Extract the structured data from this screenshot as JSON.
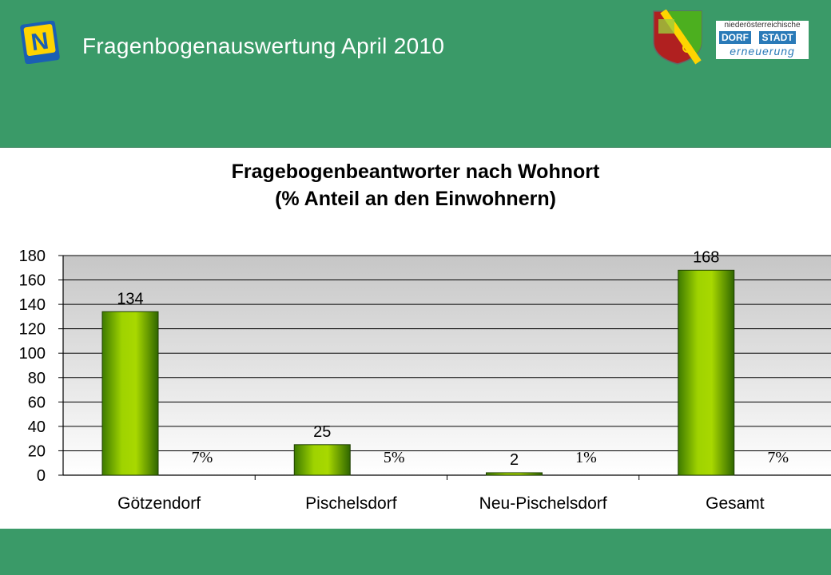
{
  "header": {
    "title": "Fragenbogenauswertung April 2010",
    "logo_n_letter": "N",
    "partner_logo": {
      "top": "niederösterreichische",
      "left": "DORF",
      "right": "STADT",
      "bottom": "erneuerung"
    }
  },
  "colors": {
    "background": "#3a9a68",
    "bar_light": "#a8d800",
    "bar_dark": "#3d7a00",
    "plot_bg_top": "#c8c8c8"
  },
  "chart_data": {
    "type": "bar",
    "title": "Fragebogenbeantworter nach Wohnort",
    "subtitle": "(% Anteil an den Einwohnern)",
    "categories": [
      "Götzendorf",
      "Pischelsdorf",
      "Neu-Pischelsdorf",
      "Gesamt"
    ],
    "values": [
      134,
      25,
      2,
      168
    ],
    "value_labels": [
      "134",
      "25",
      "2",
      "168"
    ],
    "percent_labels": [
      "7%",
      "5%",
      "1%",
      "7%"
    ],
    "ylim": [
      0,
      180
    ],
    "yticks": [
      "0",
      "20",
      "40",
      "60",
      "80",
      "100",
      "120",
      "140",
      "160",
      "180"
    ],
    "grid": true
  }
}
